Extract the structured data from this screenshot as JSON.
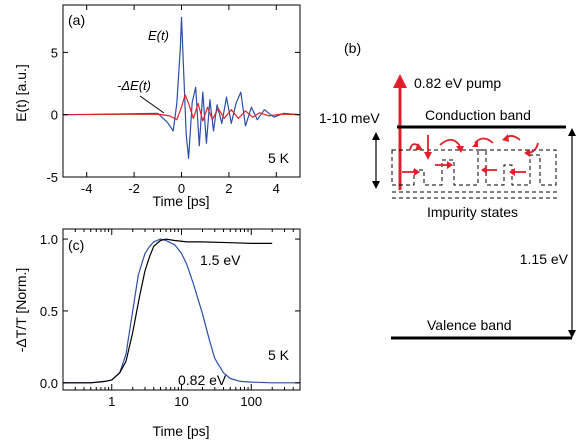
{
  "figure": {
    "panel_a": {
      "label": "(a)",
      "ylabel": "E(t) [a.u.]",
      "xlabel": "Time [ps]",
      "temperature": "5 K",
      "curve_labels": {
        "field": "E(t)",
        "change": "-ΔE(t)"
      },
      "x_ticks": [
        "-4",
        "-2",
        "0",
        "2",
        "4"
      ],
      "y_ticks": [
        "5",
        "0",
        "-5"
      ]
    },
    "panel_b": {
      "label": "(b)",
      "pump": "0.82 eV pump",
      "energy_range": "1-10 meV",
      "conduction_band": "Conduction band",
      "impurity_states": "Impurity states",
      "gap": "1.15 eV",
      "valence_band": "Valence band"
    },
    "panel_c": {
      "label": "(c)",
      "ylabel": "-ΔT/T [Norm.]",
      "xlabel": "Time [ps]",
      "temperature": "5 K",
      "curve_labels": {
        "high": "1.5 eV",
        "low": "0.82 eV"
      },
      "x_ticks": [
        "1",
        "10",
        "100"
      ],
      "y_ticks": [
        "1.0",
        "0.5",
        "0.0"
      ]
    },
    "colors": {
      "blue": "#2b4fa8",
      "red": "#e0202a",
      "black": "#000000"
    }
  },
  "chart_data": [
    {
      "type": "line",
      "panel": "(a)",
      "xlabel": "Time [ps]",
      "ylabel": "E(t) [a.u.]",
      "xlim": [
        -5,
        5
      ],
      "ylim": [
        -5,
        8.8
      ],
      "series": [
        {
          "name": "E(t)",
          "x": [
            -5,
            -1,
            -0.6,
            -0.35,
            -0.2,
            -0.05,
            0,
            0.1,
            0.2,
            0.3,
            0.45,
            0.6,
            0.75,
            0.9,
            1.05,
            1.2,
            1.35,
            1.5,
            1.7,
            1.9,
            2.1,
            2.3,
            2.5,
            2.7,
            2.95,
            3.2,
            3.5,
            3.9,
            4.3,
            5
          ],
          "y": [
            0,
            0.1,
            -0.6,
            -1.3,
            0.9,
            5.3,
            7.8,
            3.0,
            -1.6,
            -3.5,
            1.0,
            2.2,
            -2.5,
            1.8,
            -2.3,
            1.2,
            -1.3,
            0.8,
            -0.7,
            1.4,
            -0.7,
            0.9,
            1.8,
            -0.9,
            0.6,
            -0.4,
            0.4,
            -0.2,
            0.1,
            0
          ]
        },
        {
          "name": "-ΔE(t)",
          "x": [
            -5,
            -1.0,
            -0.5,
            -0.2,
            0,
            0.15,
            0.3,
            0.5,
            0.7,
            0.9,
            1.1,
            1.3,
            1.55,
            1.8,
            2.1,
            2.4,
            2.7,
            3.0,
            3.3,
            3.7,
            4.2,
            5
          ],
          "y": [
            0,
            0.05,
            -0.1,
            -0.4,
            0.6,
            1.6,
            0.9,
            -0.3,
            0.9,
            -0.5,
            0.6,
            -0.4,
            0.5,
            -0.3,
            0.4,
            -0.3,
            0.3,
            -0.2,
            0.15,
            -0.1,
            0.05,
            0
          ]
        }
      ]
    },
    {
      "type": "line",
      "panel": "(c)",
      "xlabel": "Time [ps]",
      "ylabel": "-ΔT/T [Norm.]",
      "xscale": "log",
      "xlim": [
        0.2,
        500
      ],
      "ylim": [
        -0.05,
        1.07
      ],
      "series": [
        {
          "name": "1.5 eV",
          "x": [
            0.2,
            0.5,
            0.8,
            1.0,
            1.3,
            1.6,
            2.0,
            2.5,
            3.0,
            3.5,
            4.0,
            5.0,
            6.0,
            8.0,
            12,
            20,
            50,
            100,
            200
          ],
          "y": [
            0.0,
            0.0,
            0.01,
            0.02,
            0.07,
            0.15,
            0.35,
            0.6,
            0.78,
            0.88,
            0.95,
            0.99,
            1.0,
            0.99,
            0.98,
            0.98,
            0.975,
            0.97,
            0.97
          ]
        },
        {
          "name": "0.82 eV",
          "x": [
            0.2,
            0.5,
            0.8,
            1.0,
            1.3,
            1.6,
            2.0,
            2.4,
            3.0,
            3.5,
            4.0,
            5.0,
            6.0,
            8.0,
            10,
            12,
            15,
            20,
            25,
            30,
            40,
            50,
            70,
            100,
            200,
            500
          ],
          "y": [
            0.0,
            0.0,
            0.01,
            0.02,
            0.07,
            0.2,
            0.5,
            0.75,
            0.9,
            0.95,
            0.98,
            1.0,
            0.99,
            0.96,
            0.9,
            0.82,
            0.68,
            0.48,
            0.3,
            0.17,
            0.07,
            0.03,
            0.01,
            0.005,
            0.0,
            0.0
          ]
        }
      ]
    }
  ]
}
